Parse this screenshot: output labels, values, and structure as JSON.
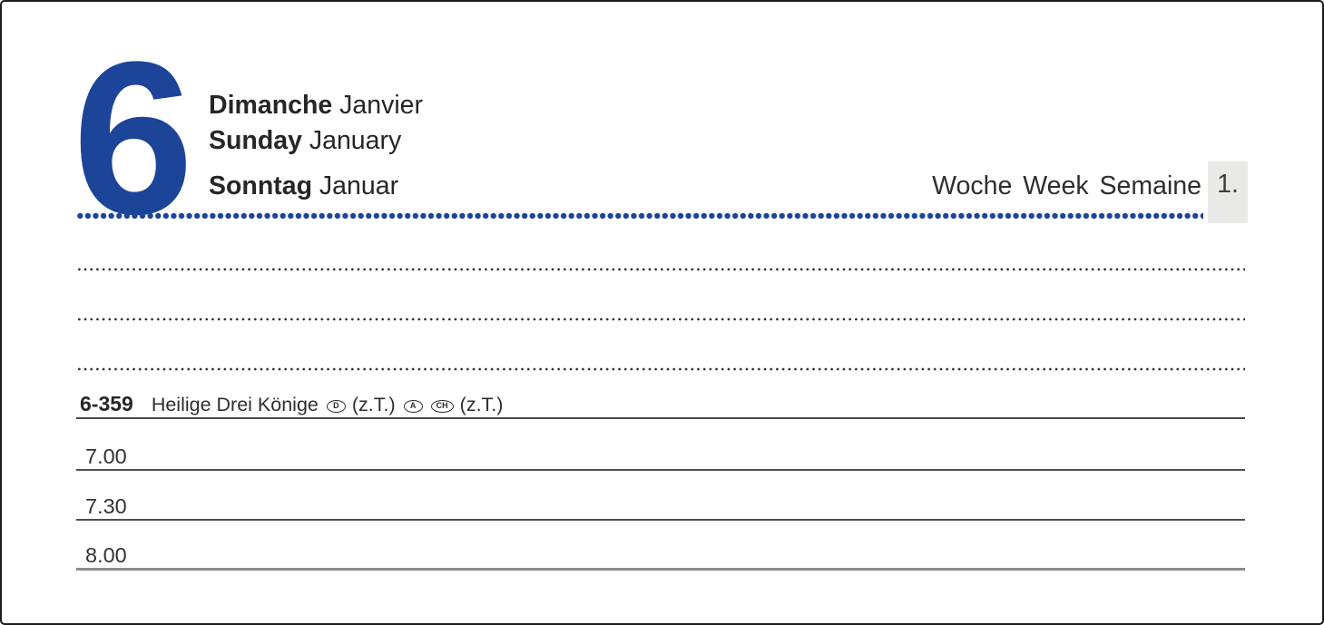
{
  "page": {
    "day_number": "6",
    "date_lines": [
      {
        "day": "Dimanche",
        "month": "Janvier"
      },
      {
        "day": "Sunday",
        "month": "January"
      },
      {
        "day": "Sonntag",
        "month": "Januar"
      }
    ],
    "week": {
      "label": "Woche Week Semaine",
      "number": "1."
    },
    "holiday": {
      "code": "6-359",
      "name": "Heilige Drei Könige",
      "regions": [
        {
          "code": "D",
          "note": "(z.T.)"
        },
        {
          "code": "A",
          "note": ""
        },
        {
          "code": "CH",
          "note": "(z.T.)"
        }
      ]
    },
    "time_rows": [
      "7.00",
      "7.30",
      "8.00"
    ],
    "colors": {
      "accent_blue": "#1C4499",
      "week_box_bg": "#e9e9e7"
    }
  }
}
